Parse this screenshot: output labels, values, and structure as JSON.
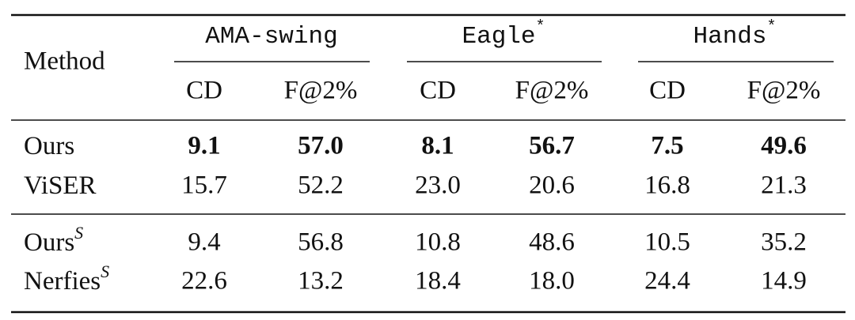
{
  "table": {
    "method_header": "Method",
    "groups": [
      {
        "name": "AMA-swing",
        "metrics": [
          "CD",
          "F@2%"
        ]
      },
      {
        "name": "Eagle",
        "mark": "*",
        "metrics": [
          "CD",
          "F@2%"
        ]
      },
      {
        "name": "Hands",
        "mark": "*",
        "metrics": [
          "CD",
          "F@2%"
        ]
      }
    ],
    "sections": [
      [
        {
          "method": "Ours",
          "bold": true,
          "values": [
            "9.1",
            "57.0",
            "8.1",
            "56.7",
            "7.5",
            "49.6"
          ]
        },
        {
          "method": "ViSER",
          "values": [
            "15.7",
            "52.2",
            "23.0",
            "20.6",
            "16.8",
            "21.3"
          ]
        }
      ],
      [
        {
          "method": "Ours",
          "sup": "S",
          "values": [
            "9.4",
            "56.8",
            "10.8",
            "48.6",
            "10.5",
            "35.2"
          ]
        },
        {
          "method": "Nerfies",
          "sup": "S",
          "values": [
            "22.6",
            "13.2",
            "18.4",
            "18.0",
            "24.4",
            "14.9"
          ]
        }
      ]
    ]
  }
}
